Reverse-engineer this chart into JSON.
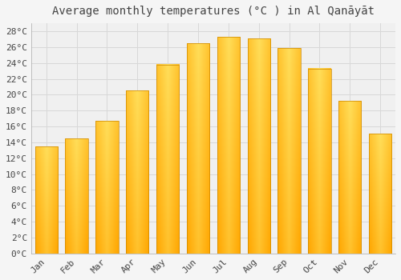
{
  "title": "Average monthly temperatures (°C ) in Al Qanāyāt",
  "months": [
    "Jan",
    "Feb",
    "Mar",
    "Apr",
    "May",
    "Jun",
    "Jul",
    "Aug",
    "Sep",
    "Oct",
    "Nov",
    "Dec"
  ],
  "temperatures": [
    13.5,
    14.5,
    16.7,
    20.5,
    23.8,
    26.5,
    27.3,
    27.1,
    25.9,
    23.3,
    19.2,
    15.1
  ],
  "bar_color_center": "#FFD966",
  "bar_color_edge": "#FFA500",
  "background_color": "#f5f5f5",
  "plot_bg_color": "#f0f0f0",
  "grid_color": "#d8d8d8",
  "ylim": [
    0,
    29
  ],
  "yticks": [
    0,
    2,
    4,
    6,
    8,
    10,
    12,
    14,
    16,
    18,
    20,
    22,
    24,
    26,
    28
  ],
  "title_fontsize": 10,
  "tick_fontsize": 8,
  "font_color": "#444444",
  "bar_width": 0.75
}
